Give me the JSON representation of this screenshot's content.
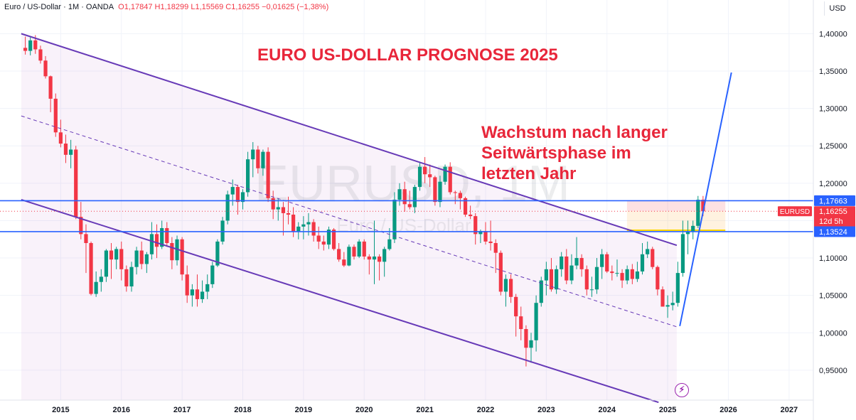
{
  "header": {
    "symbol": "Euro / US-Dollar · 1M · OANDA",
    "open": "O1,17847",
    "high": "H1,18299",
    "low": "L1,15569",
    "close": "C1,16255",
    "change": "−0,01625 (−1,38%)"
  },
  "currency_button": "USD",
  "title": "EURO US-DOLLAR PROGNOSE 2025",
  "note_lines": [
    "Wachstum nach langer",
    "Seitwärtsphase im",
    "letzten Jahr"
  ],
  "watermark": {
    "symbol": "EURUSD, 1M",
    "name": "Euro / US-Dollar"
  },
  "icons": {
    "alert": "lightning-bolt-icon"
  },
  "colors": {
    "up": "#089981",
    "down": "#f23645",
    "channel": "#673ab7",
    "level": "#2962ff",
    "annotation": "#e8263a"
  },
  "chart_data": {
    "type": "candlestick",
    "interval": "1M",
    "y_axis": {
      "min": 0.91,
      "max": 1.4165,
      "ticks": [
        "1,40000",
        "1,35000",
        "1,30000",
        "1,25000",
        "1,20000",
        "1,15000",
        "1,10000",
        "1,05000",
        "1,00000",
        "0,95000"
      ]
    },
    "x_axis": {
      "ticks": [
        "2015",
        "2016",
        "2017",
        "2018",
        "2019",
        "2020",
        "2021",
        "2022",
        "2023",
        "2024",
        "2025",
        "2026",
        "2027"
      ]
    },
    "price_labels": [
      {
        "text": "1,17663",
        "value": 1.17663,
        "kind": "level"
      },
      {
        "text": "1,16255",
        "value": 1.16255,
        "kind": "last",
        "symbol": "EURUSD",
        "countdown": "12d 5h"
      },
      {
        "text": "1,13524",
        "value": 1.13524,
        "kind": "level"
      }
    ],
    "horizontal_levels": [
      1.17663,
      1.13524
    ],
    "channel": {
      "upper": [
        [
          2014.35,
          1.4
        ],
        [
          2025.15,
          1.117
        ]
      ],
      "lower": [
        [
          2014.35,
          1.178
        ],
        [
          2024.85,
          0.907
        ]
      ],
      "middle": [
        [
          2014.35,
          1.29
        ],
        [
          2025.15,
          1.008
        ]
      ]
    },
    "forecast_line": [
      [
        2025.2,
        1.009
      ],
      [
        2026.05,
        1.348
      ]
    ],
    "series": [
      {
        "x": 2014.417,
        "o": 1.381,
        "h": 1.396,
        "l": 1.372,
        "c": 1.377
      },
      {
        "x": 2014.5,
        "o": 1.377,
        "h": 1.395,
        "l": 1.371,
        "c": 1.391
      },
      {
        "x": 2014.583,
        "o": 1.391,
        "h": 1.398,
        "l": 1.373,
        "c": 1.379
      },
      {
        "x": 2014.667,
        "o": 1.379,
        "h": 1.384,
        "l": 1.36,
        "c": 1.364
      },
      {
        "x": 2014.75,
        "o": 1.364,
        "h": 1.37,
        "l": 1.34,
        "c": 1.343
      },
      {
        "x": 2014.833,
        "o": 1.343,
        "h": 1.344,
        "l": 1.295,
        "c": 1.313
      },
      {
        "x": 2014.917,
        "o": 1.313,
        "h": 1.32,
        "l": 1.262,
        "c": 1.268
      },
      {
        "x": 2015.0,
        "o": 1.268,
        "h": 1.285,
        "l": 1.248,
        "c": 1.253
      },
      {
        "x": 2015.083,
        "o": 1.253,
        "h": 1.265,
        "l": 1.227,
        "c": 1.238
      },
      {
        "x": 2015.167,
        "o": 1.238,
        "h": 1.258,
        "l": 1.22,
        "c": 1.245
      },
      {
        "x": 2015.25,
        "o": 1.245,
        "h": 1.25,
        "l": 1.152,
        "c": 1.155
      },
      {
        "x": 2015.333,
        "o": 1.155,
        "h": 1.175,
        "l": 1.125,
        "c": 1.132
      },
      {
        "x": 2015.417,
        "o": 1.132,
        "h": 1.145,
        "l": 1.08,
        "c": 1.12
      },
      {
        "x": 2015.5,
        "o": 1.12,
        "h": 1.122,
        "l": 1.05,
        "c": 1.052
      },
      {
        "x": 2015.583,
        "o": 1.052,
        "h": 1.082,
        "l": 1.048,
        "c": 1.068
      },
      {
        "x": 2015.667,
        "o": 1.068,
        "h": 1.085,
        "l": 1.055,
        "c": 1.075
      },
      {
        "x": 2015.75,
        "o": 1.075,
        "h": 1.112,
        "l": 1.068,
        "c": 1.11
      },
      {
        "x": 2015.833,
        "o": 1.11,
        "h": 1.12,
        "l": 1.072,
        "c": 1.098
      },
      {
        "x": 2015.917,
        "o": 1.098,
        "h": 1.115,
        "l": 1.085,
        "c": 1.112
      },
      {
        "x": 2016.0,
        "o": 1.112,
        "h": 1.122,
        "l": 1.07,
        "c": 1.085
      },
      {
        "x": 2016.083,
        "o": 1.085,
        "h": 1.09,
        "l": 1.055,
        "c": 1.062
      },
      {
        "x": 2016.167,
        "o": 1.062,
        "h": 1.095,
        "l": 1.055,
        "c": 1.088
      },
      {
        "x": 2016.25,
        "o": 1.088,
        "h": 1.115,
        "l": 1.078,
        "c": 1.11
      },
      {
        "x": 2016.333,
        "o": 1.11,
        "h": 1.122,
        "l": 1.085,
        "c": 1.092
      },
      {
        "x": 2016.417,
        "o": 1.092,
        "h": 1.108,
        "l": 1.08,
        "c": 1.105
      },
      {
        "x": 2016.5,
        "o": 1.105,
        "h": 1.148,
        "l": 1.098,
        "c": 1.132
      },
      {
        "x": 2016.583,
        "o": 1.132,
        "h": 1.145,
        "l": 1.1,
        "c": 1.115
      },
      {
        "x": 2016.667,
        "o": 1.115,
        "h": 1.15,
        "l": 1.112,
        "c": 1.14
      },
      {
        "x": 2016.75,
        "o": 1.14,
        "h": 1.148,
        "l": 1.115,
        "c": 1.12
      },
      {
        "x": 2016.833,
        "o": 1.12,
        "h": 1.128,
        "l": 1.085,
        "c": 1.097
      },
      {
        "x": 2016.917,
        "o": 1.097,
        "h": 1.13,
        "l": 1.09,
        "c": 1.125
      },
      {
        "x": 2017.0,
        "o": 1.125,
        "h": 1.128,
        "l": 1.07,
        "c": 1.078
      },
      {
        "x": 2017.083,
        "o": 1.078,
        "h": 1.09,
        "l": 1.04,
        "c": 1.05
      },
      {
        "x": 2017.167,
        "o": 1.05,
        "h": 1.065,
        "l": 1.035,
        "c": 1.058
      },
      {
        "x": 2017.25,
        "o": 1.058,
        "h": 1.078,
        "l": 1.035,
        "c": 1.045
      },
      {
        "x": 2017.333,
        "o": 1.045,
        "h": 1.07,
        "l": 1.04,
        "c": 1.055
      },
      {
        "x": 2017.417,
        "o": 1.055,
        "h": 1.078,
        "l": 1.045,
        "c": 1.065
      },
      {
        "x": 2017.5,
        "o": 1.065,
        "h": 1.095,
        "l": 1.06,
        "c": 1.09
      },
      {
        "x": 2017.583,
        "o": 1.09,
        "h": 1.125,
        "l": 1.088,
        "c": 1.122
      },
      {
        "x": 2017.667,
        "o": 1.122,
        "h": 1.155,
        "l": 1.118,
        "c": 1.15
      },
      {
        "x": 2017.75,
        "o": 1.15,
        "h": 1.19,
        "l": 1.145,
        "c": 1.185
      },
      {
        "x": 2017.833,
        "o": 1.185,
        "h": 1.205,
        "l": 1.17,
        "c": 1.195
      },
      {
        "x": 2017.917,
        "o": 1.195,
        "h": 1.198,
        "l": 1.158,
        "c": 1.175
      },
      {
        "x": 2018.0,
        "o": 1.175,
        "h": 1.192,
        "l": 1.165,
        "c": 1.188
      },
      {
        "x": 2018.083,
        "o": 1.188,
        "h": 1.242,
        "l": 1.182,
        "c": 1.232
      },
      {
        "x": 2018.167,
        "o": 1.232,
        "h": 1.255,
        "l": 1.208,
        "c": 1.245
      },
      {
        "x": 2018.25,
        "o": 1.245,
        "h": 1.25,
        "l": 1.213,
        "c": 1.22
      },
      {
        "x": 2018.333,
        "o": 1.22,
        "h": 1.245,
        "l": 1.21,
        "c": 1.242
      },
      {
        "x": 2018.417,
        "o": 1.242,
        "h": 1.248,
        "l": 1.175,
        "c": 1.18
      },
      {
        "x": 2018.5,
        "o": 1.18,
        "h": 1.19,
        "l": 1.152,
        "c": 1.165
      },
      {
        "x": 2018.583,
        "o": 1.165,
        "h": 1.18,
        "l": 1.15,
        "c": 1.168
      },
      {
        "x": 2018.667,
        "o": 1.168,
        "h": 1.175,
        "l": 1.13,
        "c": 1.16
      },
      {
        "x": 2018.75,
        "o": 1.16,
        "h": 1.182,
        "l": 1.145,
        "c": 1.158
      },
      {
        "x": 2018.833,
        "o": 1.158,
        "h": 1.168,
        "l": 1.128,
        "c": 1.135
      },
      {
        "x": 2018.917,
        "o": 1.135,
        "h": 1.148,
        "l": 1.125,
        "c": 1.142
      },
      {
        "x": 2019.0,
        "o": 1.142,
        "h": 1.156,
        "l": 1.125,
        "c": 1.145
      },
      {
        "x": 2019.083,
        "o": 1.145,
        "h": 1.16,
        "l": 1.13,
        "c": 1.148
      },
      {
        "x": 2019.167,
        "o": 1.148,
        "h": 1.152,
        "l": 1.122,
        "c": 1.13
      },
      {
        "x": 2019.25,
        "o": 1.13,
        "h": 1.142,
        "l": 1.112,
        "c": 1.122
      },
      {
        "x": 2019.333,
        "o": 1.122,
        "h": 1.13,
        "l": 1.11,
        "c": 1.118
      },
      {
        "x": 2019.417,
        "o": 1.118,
        "h": 1.142,
        "l": 1.112,
        "c": 1.138
      },
      {
        "x": 2019.5,
        "o": 1.138,
        "h": 1.14,
        "l": 1.11,
        "c": 1.112
      },
      {
        "x": 2019.583,
        "o": 1.112,
        "h": 1.12,
        "l": 1.095,
        "c": 1.098
      },
      {
        "x": 2019.667,
        "o": 1.098,
        "h": 1.108,
        "l": 1.088,
        "c": 1.09
      },
      {
        "x": 2019.75,
        "o": 1.09,
        "h": 1.118,
        "l": 1.089,
        "c": 1.115
      },
      {
        "x": 2019.833,
        "o": 1.115,
        "h": 1.118,
        "l": 1.098,
        "c": 1.102
      },
      {
        "x": 2019.917,
        "o": 1.102,
        "h": 1.125,
        "l": 1.1,
        "c": 1.122
      },
      {
        "x": 2020.0,
        "o": 1.122,
        "h": 1.125,
        "l": 1.098,
        "c": 1.102
      },
      {
        "x": 2020.083,
        "o": 1.102,
        "h": 1.105,
        "l": 1.078,
        "c": 1.098
      },
      {
        "x": 2020.167,
        "o": 1.098,
        "h": 1.15,
        "l": 1.065,
        "c": 1.102
      },
      {
        "x": 2020.25,
        "o": 1.102,
        "h": 1.105,
        "l": 1.07,
        "c": 1.095
      },
      {
        "x": 2020.333,
        "o": 1.095,
        "h": 1.115,
        "l": 1.075,
        "c": 1.112
      },
      {
        "x": 2020.417,
        "o": 1.112,
        "h": 1.14,
        "l": 1.11,
        "c": 1.125
      },
      {
        "x": 2020.5,
        "o": 1.125,
        "h": 1.188,
        "l": 1.12,
        "c": 1.178
      },
      {
        "x": 2020.583,
        "o": 1.178,
        "h": 1.2,
        "l": 1.17,
        "c": 1.192
      },
      {
        "x": 2020.667,
        "o": 1.192,
        "h": 1.202,
        "l": 1.162,
        "c": 1.172
      },
      {
        "x": 2020.75,
        "o": 1.172,
        "h": 1.19,
        "l": 1.165,
        "c": 1.168
      },
      {
        "x": 2020.833,
        "o": 1.168,
        "h": 1.198,
        "l": 1.16,
        "c": 1.195
      },
      {
        "x": 2020.917,
        "o": 1.195,
        "h": 1.228,
        "l": 1.19,
        "c": 1.222
      },
      {
        "x": 2021.0,
        "o": 1.222,
        "h": 1.235,
        "l": 1.2,
        "c": 1.212
      },
      {
        "x": 2021.083,
        "o": 1.212,
        "h": 1.225,
        "l": 1.195,
        "c": 1.208
      },
      {
        "x": 2021.167,
        "o": 1.208,
        "h": 1.21,
        "l": 1.17,
        "c": 1.175
      },
      {
        "x": 2021.25,
        "o": 1.175,
        "h": 1.21,
        "l": 1.168,
        "c": 1.202
      },
      {
        "x": 2021.333,
        "o": 1.202,
        "h": 1.225,
        "l": 1.198,
        "c": 1.222
      },
      {
        "x": 2021.417,
        "o": 1.222,
        "h": 1.228,
        "l": 1.185,
        "c": 1.188
      },
      {
        "x": 2021.5,
        "o": 1.188,
        "h": 1.19,
        "l": 1.172,
        "c": 1.187
      },
      {
        "x": 2021.583,
        "o": 1.187,
        "h": 1.19,
        "l": 1.165,
        "c": 1.18
      },
      {
        "x": 2021.667,
        "o": 1.18,
        "h": 1.182,
        "l": 1.155,
        "c": 1.158
      },
      {
        "x": 2021.75,
        "o": 1.158,
        "h": 1.17,
        "l": 1.152,
        "c": 1.156
      },
      {
        "x": 2021.833,
        "o": 1.156,
        "h": 1.16,
        "l": 1.118,
        "c": 1.132
      },
      {
        "x": 2021.917,
        "o": 1.132,
        "h": 1.138,
        "l": 1.12,
        "c": 1.136
      },
      {
        "x": 2022.0,
        "o": 1.136,
        "h": 1.148,
        "l": 1.118,
        "c": 1.122
      },
      {
        "x": 2022.083,
        "o": 1.122,
        "h": 1.15,
        "l": 1.11,
        "c": 1.12
      },
      {
        "x": 2022.167,
        "o": 1.12,
        "h": 1.125,
        "l": 1.08,
        "c": 1.107
      },
      {
        "x": 2022.25,
        "o": 1.107,
        "h": 1.11,
        "l": 1.05,
        "c": 1.055
      },
      {
        "x": 2022.333,
        "o": 1.055,
        "h": 1.078,
        "l": 1.035,
        "c": 1.072
      },
      {
        "x": 2022.417,
        "o": 1.072,
        "h": 1.078,
        "l": 1.04,
        "c": 1.048
      },
      {
        "x": 2022.5,
        "o": 1.048,
        "h": 1.052,
        "l": 0.995,
        "c": 1.022
      },
      {
        "x": 2022.583,
        "o": 1.022,
        "h": 1.035,
        "l": 0.99,
        "c": 1.005
      },
      {
        "x": 2022.667,
        "o": 1.005,
        "h": 1.01,
        "l": 0.955,
        "c": 0.98
      },
      {
        "x": 2022.75,
        "o": 0.98,
        "h": 1.0,
        "l": 0.96,
        "c": 0.99
      },
      {
        "x": 2022.833,
        "o": 0.99,
        "h": 1.05,
        "l": 0.975,
        "c": 1.04
      },
      {
        "x": 2022.917,
        "o": 1.04,
        "h": 1.075,
        "l": 1.035,
        "c": 1.07
      },
      {
        "x": 2023.0,
        "o": 1.07,
        "h": 1.095,
        "l": 1.05,
        "c": 1.085
      },
      {
        "x": 2023.083,
        "o": 1.085,
        "h": 1.1,
        "l": 1.055,
        "c": 1.058
      },
      {
        "x": 2023.167,
        "o": 1.058,
        "h": 1.09,
        "l": 1.052,
        "c": 1.085
      },
      {
        "x": 2023.25,
        "o": 1.085,
        "h": 1.108,
        "l": 1.075,
        "c": 1.102
      },
      {
        "x": 2023.333,
        "o": 1.102,
        "h": 1.112,
        "l": 1.065,
        "c": 1.07
      },
      {
        "x": 2023.417,
        "o": 1.07,
        "h": 1.105,
        "l": 1.065,
        "c": 1.09
      },
      {
        "x": 2023.5,
        "o": 1.09,
        "h": 1.128,
        "l": 1.085,
        "c": 1.1
      },
      {
        "x": 2023.583,
        "o": 1.1,
        "h": 1.105,
        "l": 1.075,
        "c": 1.085
      },
      {
        "x": 2023.667,
        "o": 1.085,
        "h": 1.09,
        "l": 1.05,
        "c": 1.058
      },
      {
        "x": 2023.75,
        "o": 1.058,
        "h": 1.075,
        "l": 1.048,
        "c": 1.058
      },
      {
        "x": 2023.833,
        "o": 1.058,
        "h": 1.1,
        "l": 1.052,
        "c": 1.088
      },
      {
        "x": 2023.917,
        "o": 1.088,
        "h": 1.112,
        "l": 1.072,
        "c": 1.105
      },
      {
        "x": 2024.0,
        "o": 1.105,
        "h": 1.108,
        "l": 1.08,
        "c": 1.082
      },
      {
        "x": 2024.083,
        "o": 1.082,
        "h": 1.09,
        "l": 1.07,
        "c": 1.08
      },
      {
        "x": 2024.167,
        "o": 1.08,
        "h": 1.098,
        "l": 1.075,
        "c": 1.08
      },
      {
        "x": 2024.25,
        "o": 1.08,
        "h": 1.085,
        "l": 1.06,
        "c": 1.07
      },
      {
        "x": 2024.333,
        "o": 1.07,
        "h": 1.09,
        "l": 1.065,
        "c": 1.085
      },
      {
        "x": 2024.417,
        "o": 1.085,
        "h": 1.092,
        "l": 1.065,
        "c": 1.072
      },
      {
        "x": 2024.5,
        "o": 1.072,
        "h": 1.095,
        "l": 1.068,
        "c": 1.082
      },
      {
        "x": 2024.583,
        "o": 1.082,
        "h": 1.12,
        "l": 1.078,
        "c": 1.105
      },
      {
        "x": 2024.667,
        "o": 1.105,
        "h": 1.122,
        "l": 1.1,
        "c": 1.112
      },
      {
        "x": 2024.75,
        "o": 1.112,
        "h": 1.115,
        "l": 1.085,
        "c": 1.088
      },
      {
        "x": 2024.833,
        "o": 1.088,
        "h": 1.09,
        "l": 1.05,
        "c": 1.058
      },
      {
        "x": 2024.917,
        "o": 1.058,
        "h": 1.062,
        "l": 1.035,
        "c": 1.035
      },
      {
        "x": 2025.0,
        "o": 1.035,
        "h": 1.05,
        "l": 1.02,
        "c": 1.037
      },
      {
        "x": 2025.083,
        "o": 1.037,
        "h": 1.055,
        "l": 1.03,
        "c": 1.04
      },
      {
        "x": 2025.167,
        "o": 1.04,
        "h": 1.095,
        "l": 1.035,
        "c": 1.08
      },
      {
        "x": 2025.25,
        "o": 1.08,
        "h": 1.15,
        "l": 1.075,
        "c": 1.132
      },
      {
        "x": 2025.333,
        "o": 1.132,
        "h": 1.15,
        "l": 1.105,
        "c": 1.135
      },
      {
        "x": 2025.417,
        "o": 1.135,
        "h": 1.15,
        "l": 1.125,
        "c": 1.143
      },
      {
        "x": 2025.5,
        "o": 1.143,
        "h": 1.183,
        "l": 1.14,
        "c": 1.178
      },
      {
        "x": 2025.583,
        "o": 1.178,
        "h": 1.183,
        "l": 1.156,
        "c": 1.1625
      }
    ]
  }
}
